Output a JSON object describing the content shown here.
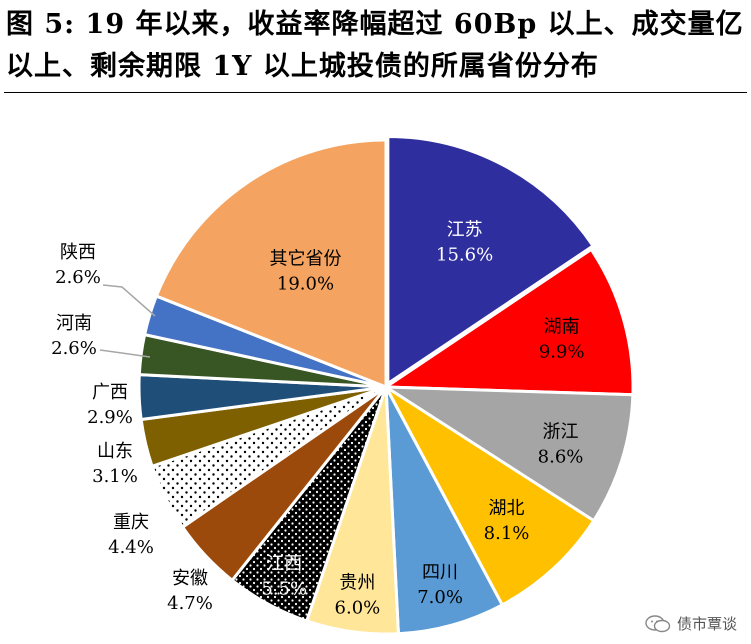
{
  "title": "图 5:  19 年以来，收益率降幅超过 60Bp 以上、成交量亿以上、剩余期限 1Y 以上城投债的所属省份分布",
  "watermark": "债市覃谈",
  "chart_data": {
    "type": "pie",
    "title": "",
    "slices": [
      {
        "name": "江苏",
        "value": 15.6,
        "label": "15.6%",
        "color": "#2e2e9e",
        "pattern": "solid",
        "label_color": "#ffffff",
        "label_pos": "inside"
      },
      {
        "name": "湖南",
        "value": 9.9,
        "label": "9.9%",
        "color": "#ff0000",
        "pattern": "solid",
        "label_color": "#000000",
        "label_pos": "inside"
      },
      {
        "name": "浙江",
        "value": 8.6,
        "label": "8.6%",
        "color": "#a5a5a5",
        "pattern": "solid",
        "label_color": "#000000",
        "label_pos": "inside"
      },
      {
        "name": "湖北",
        "value": 8.1,
        "label": "8.1%",
        "color": "#ffc000",
        "pattern": "solid",
        "label_color": "#000000",
        "label_pos": "inside"
      },
      {
        "name": "四川",
        "value": 7.0,
        "label": "7.0%",
        "color": "#5b9bd5",
        "pattern": "solid",
        "label_color": "#000000",
        "label_pos": "inside"
      },
      {
        "name": "贵州",
        "value": 6.0,
        "label": "6.0%",
        "color": "#ffe699",
        "pattern": "solid",
        "label_color": "#000000",
        "label_pos": "inside"
      },
      {
        "name": "江西",
        "value": 5.5,
        "label": "5.5%",
        "color": "#000000",
        "pattern": "dots-white-on-black",
        "label_color": "#ffffff",
        "label_pos": "inside"
      },
      {
        "name": "安徽",
        "value": 4.7,
        "label": "4.7%",
        "color": "#9c4a0c",
        "pattern": "solid",
        "label_color": "#000000",
        "label_pos": "outside"
      },
      {
        "name": "重庆",
        "value": 4.4,
        "label": "4.4%",
        "color": "#ffffff",
        "pattern": "dots-black-on-white",
        "label_color": "#000000",
        "label_pos": "outside"
      },
      {
        "name": "山东",
        "value": 3.1,
        "label": "3.1%",
        "color": "#7f6000",
        "pattern": "solid",
        "label_color": "#000000",
        "label_pos": "outside"
      },
      {
        "name": "广西",
        "value": 2.9,
        "label": "2.9%",
        "color": "#1f4e79",
        "pattern": "solid",
        "label_color": "#000000",
        "label_pos": "outside"
      },
      {
        "name": "河南",
        "value": 2.6,
        "label": "2.6%",
        "color": "#375623",
        "pattern": "solid",
        "label_color": "#000000",
        "label_pos": "outside-leader"
      },
      {
        "name": "陕西",
        "value": 2.6,
        "label": "2.6%",
        "color": "#4472c4",
        "pattern": "solid",
        "label_color": "#000000",
        "label_pos": "outside-leader"
      },
      {
        "name": "其它省份",
        "value": 19.0,
        "label": "19.0%",
        "color": "#f4a460",
        "pattern": "solid",
        "label_color": "#000000",
        "label_pos": "inside"
      }
    ],
    "start_angle": "12 o'clock",
    "direction": "clockwise",
    "legend": "none"
  }
}
